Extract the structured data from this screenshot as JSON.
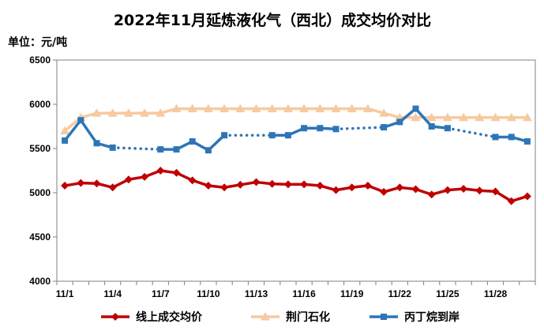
{
  "chart_data": {
    "type": "line",
    "title": "2022年11月延炼液化气（西北）成交均价对比",
    "ylabel": "单位：元/吨",
    "ylim": [
      4000,
      6500
    ],
    "yticks": [
      "4000",
      "4500",
      "5000",
      "5500",
      "6000",
      "6500"
    ],
    "categories": [
      "11/1",
      "11/2",
      "11/3",
      "11/4",
      "11/5",
      "11/6",
      "11/7",
      "11/8",
      "11/9",
      "11/10",
      "11/11",
      "11/12",
      "11/13",
      "11/14",
      "11/15",
      "11/16",
      "11/17",
      "11/18",
      "11/19",
      "11/20",
      "11/21",
      "11/22",
      "11/23",
      "11/24",
      "11/25",
      "11/26",
      "11/27",
      "11/28",
      "11/29",
      "11/30"
    ],
    "xtick_labels": [
      "11/1",
      "11/4",
      "11/7",
      "11/10",
      "11/13",
      "11/16",
      "11/19",
      "11/22",
      "11/25",
      "11/28"
    ],
    "legend_position": "bottom",
    "grid": false,
    "series": [
      {
        "name": "线上成交均价",
        "color": "#c00000",
        "marker": "diamond",
        "values": [
          5080,
          5110,
          5105,
          5060,
          5150,
          5180,
          5250,
          5225,
          5140,
          5080,
          5060,
          5090,
          5120,
          5100,
          5095,
          5095,
          5080,
          5030,
          5060,
          5080,
          5010,
          5060,
          5040,
          4980,
          5030,
          5045,
          5025,
          5015,
          4905,
          4960
        ]
      },
      {
        "name": "荆门石化",
        "color": "#f8c9a0",
        "marker": "triangle",
        "values": [
          5700,
          5850,
          5900,
          5900,
          5900,
          5900,
          5900,
          5950,
          5950,
          5950,
          5950,
          5950,
          5950,
          5950,
          5950,
          5950,
          5950,
          5950,
          5950,
          5950,
          5900,
          5850,
          5850,
          5850,
          5850,
          5850,
          5850,
          5850,
          5850,
          5850
        ]
      },
      {
        "name": "丙丁烷到岸",
        "color": "#2e75b6",
        "marker": "square",
        "values": [
          5590,
          5820,
          5560,
          5510,
          null,
          null,
          5490,
          5490,
          5580,
          5480,
          5650,
          null,
          null,
          5650,
          5650,
          5730,
          5730,
          5720,
          null,
          null,
          5740,
          5800,
          5950,
          5750,
          5730,
          null,
          null,
          5630,
          5630,
          5580
        ]
      }
    ]
  }
}
